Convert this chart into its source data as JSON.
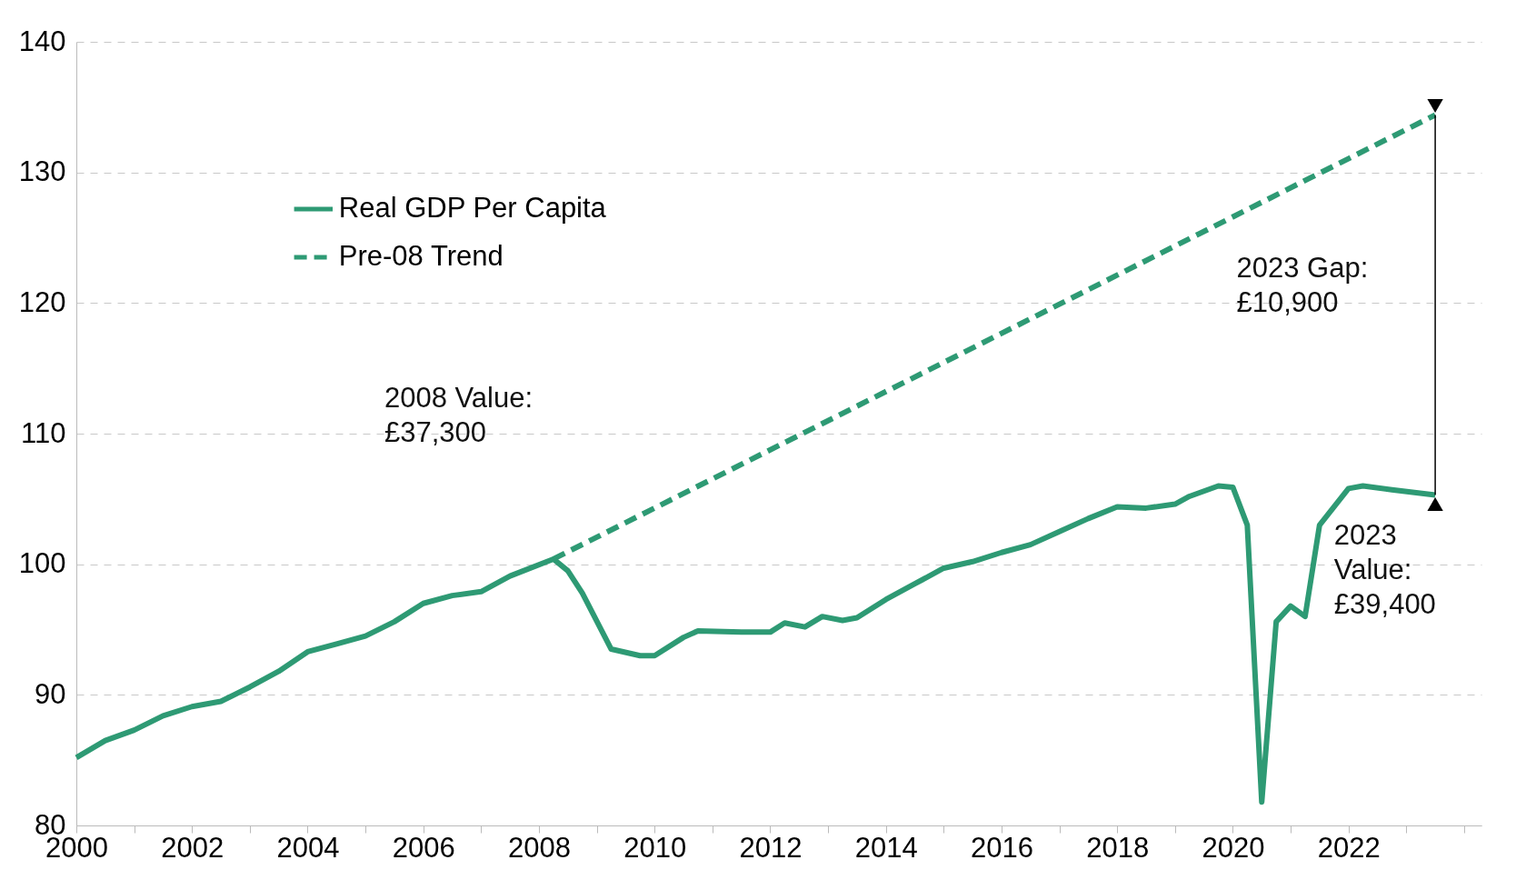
{
  "chart_data": {
    "type": "line",
    "series": [
      {
        "name": "Real GDP Per Capita",
        "color": "#2e9a74",
        "line_style": "solid",
        "x": [
          2000,
          2000.5,
          2001,
          2001.5,
          2002,
          2002.5,
          2003,
          2003.5,
          2004,
          2004.5,
          2005,
          2005.5,
          2006,
          2006.5,
          2007,
          2007.5,
          2008.25,
          2008.5,
          2008.75,
          2009.25,
          2009.75,
          2010,
          2010.5,
          2010.75,
          2011.5,
          2012,
          2012.25,
          2012.6,
          2012.9,
          2013.25,
          2013.5,
          2014,
          2014.5,
          2015,
          2015.5,
          2016,
          2016.5,
          2017,
          2017.5,
          2018,
          2018.5,
          2019,
          2019.25,
          2019.75,
          2020,
          2020.25,
          2020.5,
          2020.75,
          2021,
          2021.25,
          2021.5,
          2022,
          2022.25,
          2022.75,
          2023.5
        ],
        "values": [
          85.2,
          86.5,
          87.3,
          88.4,
          89.1,
          89.5,
          90.6,
          91.8,
          93.3,
          93.9,
          94.5,
          95.6,
          97.0,
          97.6,
          97.9,
          99.1,
          100.4,
          99.5,
          97.8,
          93.5,
          93.0,
          93.0,
          94.4,
          94.9,
          94.8,
          94.8,
          95.5,
          95.2,
          96.0,
          95.7,
          95.9,
          97.3,
          98.5,
          99.7,
          100.2,
          100.9,
          101.5,
          102.5,
          103.5,
          104.4,
          104.3,
          104.6,
          105.2,
          106.0,
          105.9,
          103.0,
          81.8,
          95.6,
          96.8,
          96.0,
          103.0,
          105.8,
          106.0,
          105.7,
          105.3
        ]
      },
      {
        "name": "Pre-08 Trend",
        "color": "#2e9a74",
        "line_style": "dashed",
        "x": [
          2008.25,
          2023.5
        ],
        "values": [
          100.4,
          134.4
        ]
      }
    ],
    "xlim": [
      2000,
      2024.3
    ],
    "xticks": [
      2000,
      {
        "value": 2001,
        "label": null
      },
      2002,
      {
        "value": 2003,
        "label": null
      },
      2004,
      {
        "value": 2005,
        "label": null
      },
      2006,
      {
        "value": 2007,
        "label": null
      },
      2008,
      {
        "value": 2009,
        "label": null
      },
      2010,
      {
        "value": 2011,
        "label": null
      },
      2012,
      {
        "value": 2013,
        "label": null
      },
      2014,
      {
        "value": 2015,
        "label": null
      },
      2016,
      {
        "value": 2017,
        "label": null
      },
      2018,
      {
        "value": 2019,
        "label": null
      },
      2020,
      {
        "value": 2021,
        "label": null
      },
      2022,
      {
        "value": 2023,
        "label": null
      },
      {
        "value": 2024,
        "label": null
      }
    ],
    "ylim": [
      80,
      140
    ],
    "yticks": [
      80,
      90,
      100,
      110,
      120,
      130,
      140
    ],
    "grid": "y",
    "legend": "top left",
    "marker": "none",
    "annotations": [
      "2008 Value:\n£37,300",
      "2023 Gap:\n£10,900",
      "2023\nValue:\n£39,400"
    ]
  }
}
